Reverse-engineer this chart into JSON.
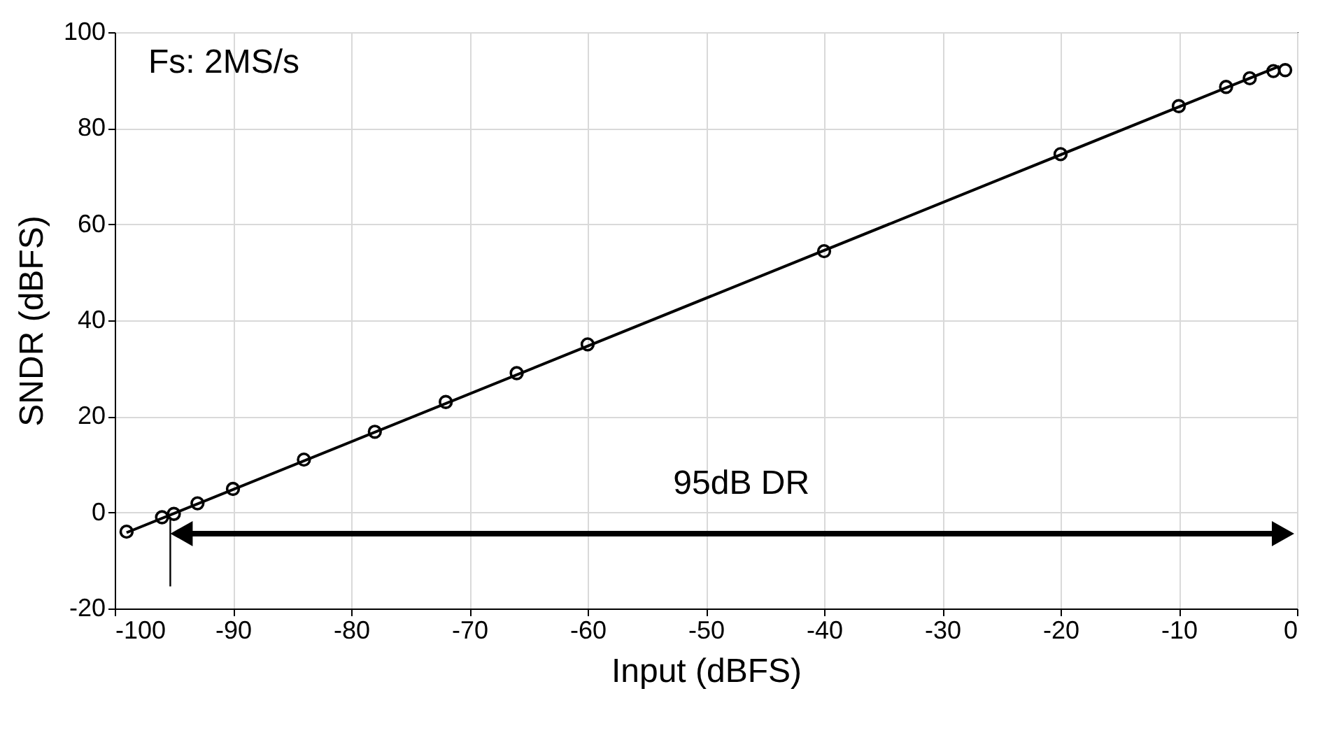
{
  "chart_data": {
    "type": "scatter",
    "xlabel": "Input (dBFS)",
    "ylabel": "SNDR (dBFS)",
    "annotations": [
      "Fs: 2MS/s",
      "95dB DR"
    ],
    "xlim": [
      -100,
      0
    ],
    "xticks": [
      -100,
      -90,
      -80,
      -70,
      -60,
      -50,
      -40,
      -30,
      -20,
      -10,
      0
    ],
    "ylim": [
      -20,
      100
    ],
    "yticks": [
      -20,
      0,
      20,
      40,
      60,
      80,
      100
    ],
    "grid": true,
    "series": [
      {
        "type": "scatter",
        "color": "#000000",
        "marker": "circle",
        "x": [
          -99,
          -96,
          -95,
          -93,
          -90,
          -84,
          -78,
          -72,
          -66,
          -60,
          -40,
          -20,
          -10,
          -6,
          -4,
          -2,
          -1
        ],
        "values": [
          -4,
          -1,
          -0.3,
          1.9,
          4.9,
          11,
          16.8,
          23,
          29,
          35,
          54.4,
          74.6,
          84.6,
          88.6,
          90.4,
          91.9,
          92.1
        ]
      },
      {
        "type": "line",
        "color": "#000000",
        "marker": "none",
        "x": [
          -99,
          -1.5
        ],
        "values": [
          -4.2,
          92.9
        ]
      }
    ]
  }
}
